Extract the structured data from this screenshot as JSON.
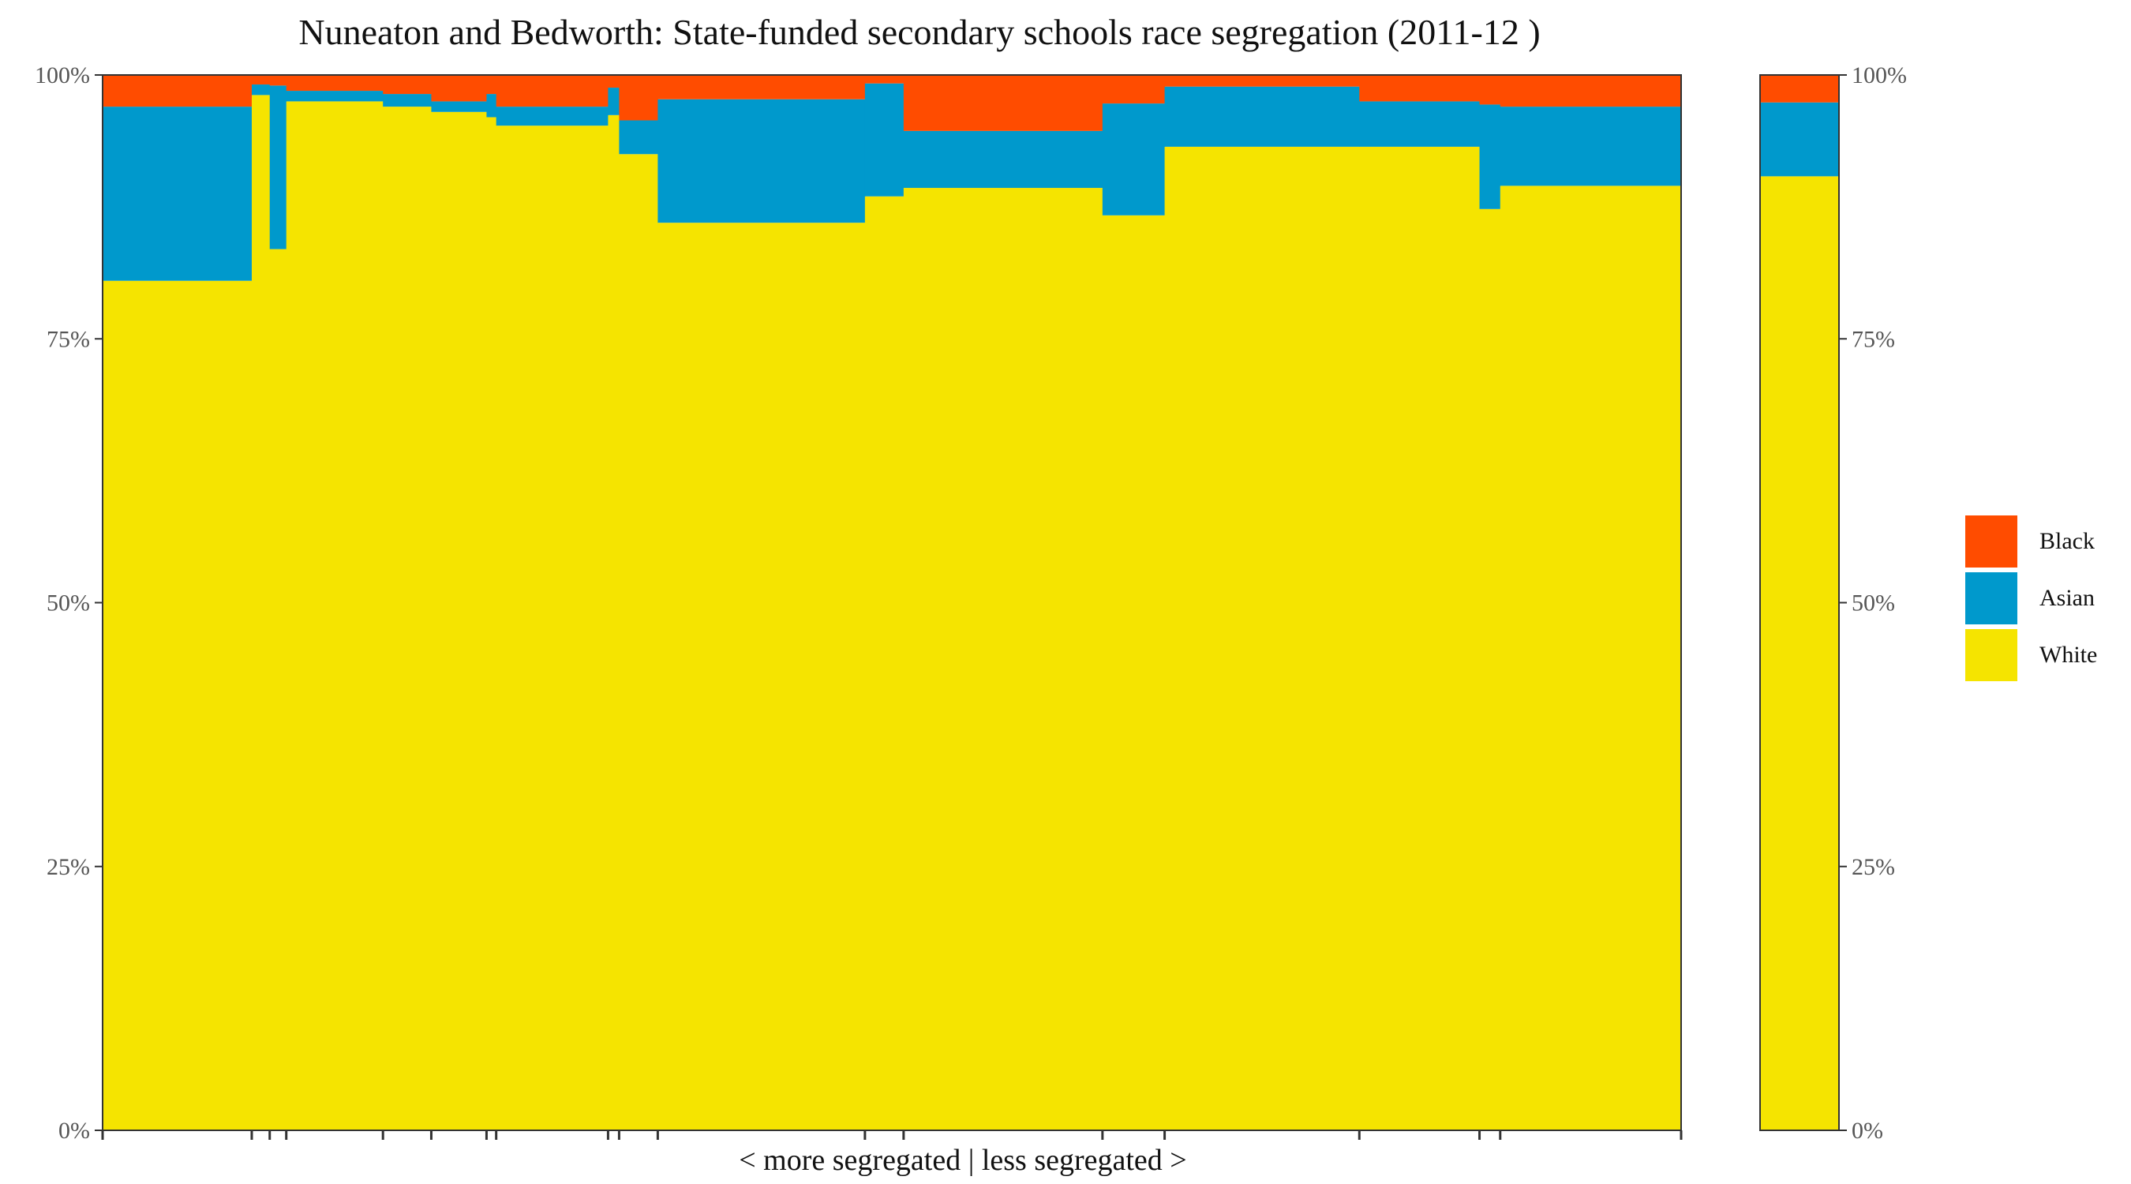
{
  "chart_data": {
    "type": "bar",
    "variant": "stacked-100-percent-variable-width",
    "title": "Nuneaton and Bedworth: State-funded secondary schools race segregation (2011-12 )",
    "xlabel": "< more segregated | less segregated >",
    "ylabel": "",
    "ylim": [
      0,
      1
    ],
    "y_ticks": [
      "0%",
      "25%",
      "50%",
      "75%",
      "100%"
    ],
    "grid": false,
    "legend_position": "right",
    "series_order_bottom_to_top": [
      "White",
      "Asian",
      "Black"
    ],
    "colors": {
      "White": "#f5e400",
      "Asian": "#0099cc",
      "Black": "#ff4c00"
    },
    "legend": [
      "Black",
      "Asian",
      "White"
    ],
    "schools": [
      {
        "width": 108,
        "white": 0.805,
        "asian": 0.165,
        "black": 0.03
      },
      {
        "width": 13,
        "white": 0.981,
        "asian": 0.01,
        "black": 0.009
      },
      {
        "width": 12,
        "white": 0.835,
        "asian": 0.155,
        "black": 0.01
      },
      {
        "width": 70,
        "white": 0.975,
        "asian": 0.01,
        "black": 0.015
      },
      {
        "width": 35,
        "white": 0.97,
        "asian": 0.012,
        "black": 0.018
      },
      {
        "width": 40,
        "white": 0.965,
        "asian": 0.01,
        "black": 0.025
      },
      {
        "width": 7,
        "white": 0.96,
        "asian": 0.022,
        "black": 0.018
      },
      {
        "width": 81,
        "white": 0.952,
        "asian": 0.018,
        "black": 0.03
      },
      {
        "width": 8,
        "white": 0.962,
        "asian": 0.026,
        "black": 0.012
      },
      {
        "width": 28,
        "white": 0.925,
        "asian": 0.032,
        "black": 0.043
      },
      {
        "width": 150,
        "white": 0.86,
        "asian": 0.117,
        "black": 0.023
      },
      {
        "width": 28,
        "white": 0.885,
        "asian": 0.107,
        "black": 0.008
      },
      {
        "width": 144,
        "white": 0.893,
        "asian": 0.054,
        "black": 0.053
      },
      {
        "width": 45,
        "white": 0.867,
        "asian": 0.106,
        "black": 0.027
      },
      {
        "width": 141,
        "white": 0.932,
        "asian": 0.057,
        "black": 0.011
      },
      {
        "width": 87,
        "white": 0.932,
        "asian": 0.043,
        "black": 0.025
      },
      {
        "width": 15,
        "white": 0.873,
        "asian": 0.099,
        "black": 0.028
      },
      {
        "width": 131,
        "white": 0.895,
        "asian": 0.075,
        "black": 0.03
      }
    ],
    "overall": {
      "white": 0.904,
      "asian": 0.07,
      "black": 0.026
    }
  }
}
